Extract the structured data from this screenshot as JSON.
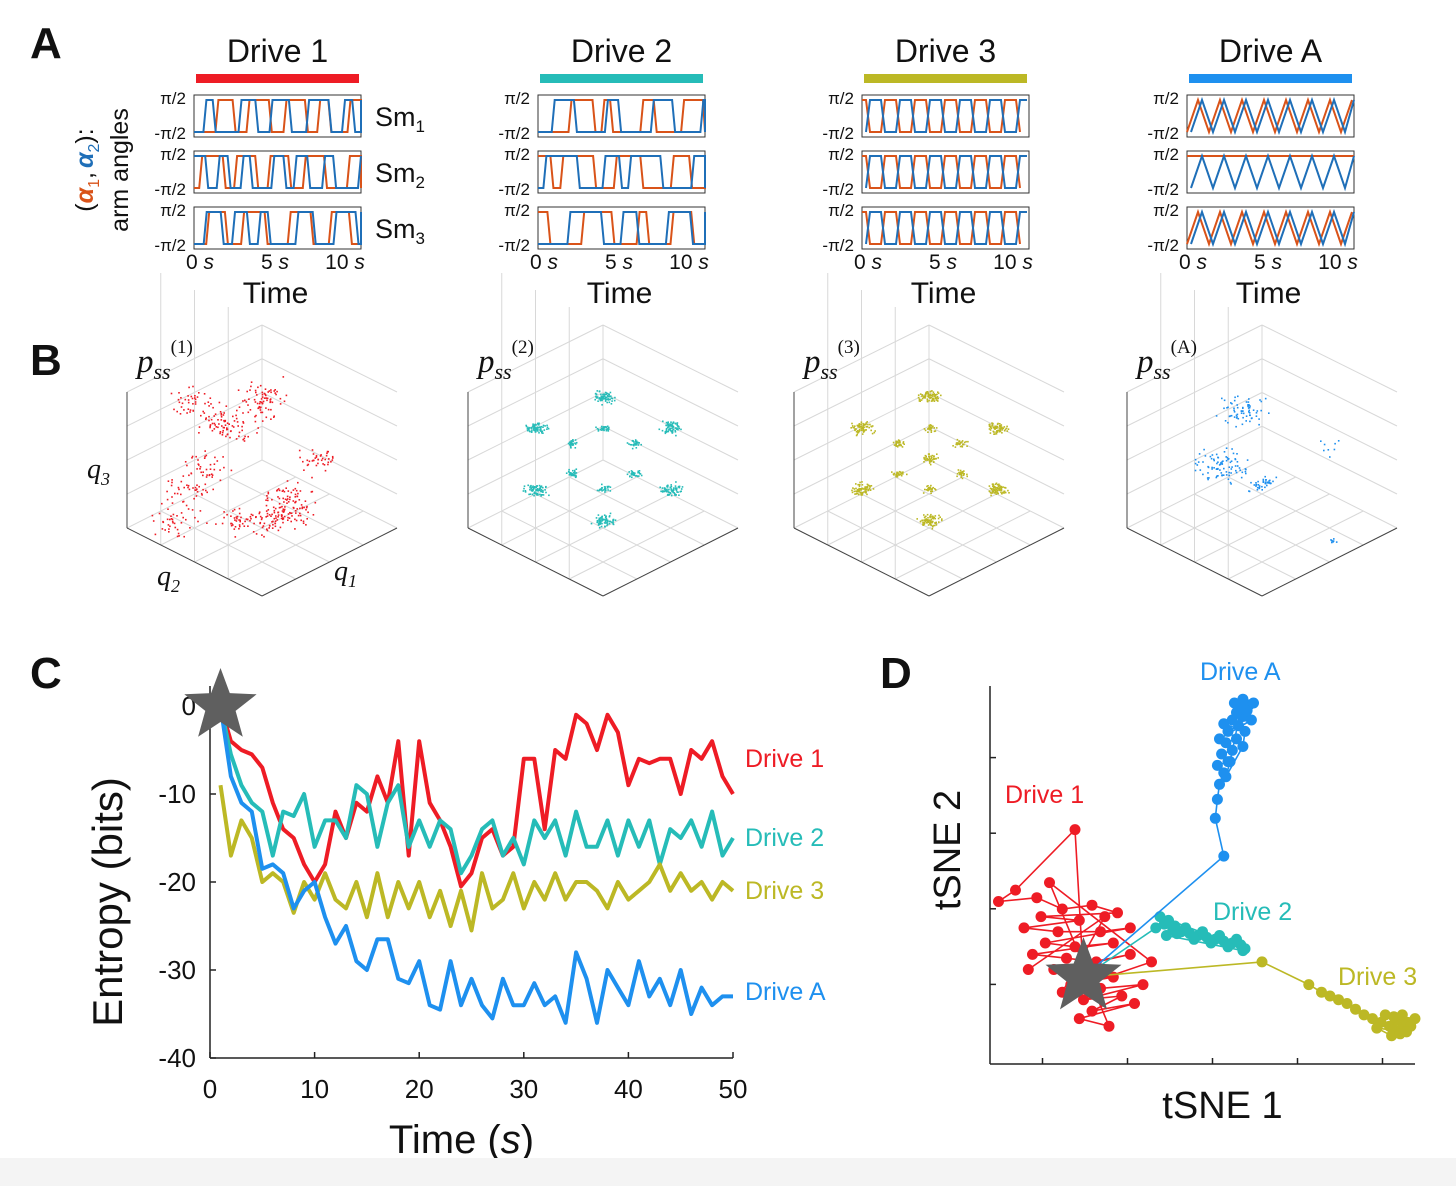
{
  "figure_title": "",
  "panel_labels": {
    "A": "A",
    "B": "B",
    "C": "C",
    "D": "D"
  },
  "colors": {
    "drive_1": "#ee1c25",
    "drive_2": "#26bcb8",
    "drive_3": "#bcb825",
    "drive_A": "#1e90ef",
    "alpha1": "#d95319",
    "alpha2": "#1f6fb8",
    "star": "#5f5f5f",
    "axis": "#222222",
    "grid": "#d8d8d8"
  },
  "panel_A": {
    "ylabel_line1": "arm angles",
    "ylabel_prefix": "(",
    "ylabel_alpha1": "α",
    "ylabel_sub1": "1",
    "ylabel_comma": ",",
    "ylabel_alpha2": "α",
    "ylabel_sub2": "2",
    "ylabel_suffix": "):",
    "row_labels": [
      {
        "main": "Sm",
        "sub": "1"
      },
      {
        "main": "Sm",
        "sub": "2"
      },
      {
        "main": "Sm",
        "sub": "3"
      }
    ],
    "ytick_top": "π/2",
    "ytick_bottom": "-π/2",
    "xticks": [
      {
        "num": "0",
        "unit": "s"
      },
      {
        "num": "5",
        "unit": "s"
      },
      {
        "num": "10",
        "unit": "s"
      }
    ],
    "xlabel": "Time",
    "drives": [
      {
        "title": "Drive 1",
        "color": "#ee1c25"
      },
      {
        "title": "Drive 2",
        "color": "#26bcb8"
      },
      {
        "title": "Drive 3",
        "color": "#bcb825"
      },
      {
        "title": "Drive A",
        "color": "#1e90ef"
      }
    ]
  },
  "panel_B": {
    "plots": [
      {
        "label_main": "p",
        "label_sub": "ss",
        "label_sup": "(1)",
        "color": "#ee1c25"
      },
      {
        "label_main": "p",
        "label_sub": "ss",
        "label_sup": "(2)",
        "color": "#26bcb8"
      },
      {
        "label_main": "p",
        "label_sub": "ss",
        "label_sup": "(3)",
        "color": "#bcb825"
      },
      {
        "label_main": "p",
        "label_sub": "ss",
        "label_sup": "(A)",
        "color": "#1e90ef"
      }
    ],
    "axis_labels": {
      "q1": "q",
      "q1_sub": "1",
      "q2": "q",
      "q2_sub": "2",
      "q3": "q",
      "q3_sub": "3"
    }
  },
  "chart_data": [
    {
      "type": "line",
      "title": "",
      "xlabel_main": "Time (",
      "xlabel_unit": "s",
      "xlabel_end": ")",
      "ylabel": "Entropy (bits)",
      "xlim": [
        0,
        50
      ],
      "ylim": [
        -40,
        0
      ],
      "xticks": [
        0,
        10,
        20,
        30,
        40,
        50
      ],
      "yticks": [
        0,
        -10,
        -20,
        -30,
        -40
      ],
      "start_marker": {
        "x": 1,
        "y": 0
      },
      "x": [
        1,
        2,
        3,
        4,
        5,
        6,
        7,
        8,
        9,
        10,
        11,
        12,
        13,
        14,
        15,
        16,
        17,
        18,
        19,
        20,
        21,
        22,
        23,
        24,
        25,
        26,
        27,
        28,
        29,
        30,
        31,
        32,
        33,
        34,
        35,
        36,
        37,
        38,
        39,
        40,
        41,
        42,
        43,
        44,
        45,
        46,
        47,
        48,
        49,
        50
      ],
      "series": [
        {
          "name": "Drive 1",
          "color": "#ee1c25",
          "values": [
            0,
            -4,
            -5,
            -5.5,
            -7,
            -11,
            -14,
            -15,
            -18,
            -20,
            -18,
            -12,
            -15,
            -11,
            -12,
            -8,
            -11,
            -4,
            -17,
            -4,
            -11,
            -13,
            -16,
            -20.5,
            -19,
            -15,
            -14,
            -17,
            -16,
            -6,
            -6,
            -14,
            -5,
            -6,
            -1,
            -2,
            -5,
            -1,
            -3,
            -9,
            -6,
            -6.5,
            -6,
            -6,
            -10,
            -5,
            -6,
            -4,
            -8,
            -10
          ]
        },
        {
          "name": "Drive 2",
          "color": "#26bcb8",
          "values": [
            0,
            -5.5,
            -9,
            -11,
            -12,
            -17,
            -12,
            -12.5,
            -10,
            -16,
            -13,
            -13,
            -15,
            -9,
            -10,
            -16,
            -11,
            -9,
            -16,
            -13,
            -16,
            -13,
            -14,
            -19,
            -17,
            -14,
            -13,
            -17,
            -15,
            -18,
            -13,
            -15,
            -13,
            -17,
            -12,
            -16,
            -16,
            -13,
            -17,
            -13,
            -16,
            -13,
            -18,
            -14,
            -15,
            -13,
            -16,
            -12,
            -17,
            -15
          ]
        },
        {
          "name": "Drive 3",
          "color": "#bcb825",
          "values": [
            -9,
            -17,
            -13,
            -15,
            -20,
            -19,
            -20,
            -23.5,
            -20,
            -22,
            -19,
            -22,
            -23,
            -20,
            -24,
            -19,
            -24,
            -20,
            -23,
            -20,
            -24,
            -21,
            -25,
            -21,
            -25.5,
            -19,
            -23,
            -22,
            -19,
            -23,
            -20,
            -22,
            -19,
            -22,
            -20,
            -20,
            -21,
            -23,
            -20,
            -22,
            -21,
            -20,
            -18,
            -21,
            -19,
            -21,
            -20,
            -22,
            -20,
            -21
          ]
        },
        {
          "name": "Drive A",
          "color": "#1e90ef",
          "values": [
            0,
            -8,
            -11,
            -12,
            -18.5,
            -18,
            -19,
            -23,
            -21,
            -20,
            -24,
            -27,
            -25,
            -29,
            -30,
            -26.5,
            -26.5,
            -31,
            -31.5,
            -29,
            -34,
            -34.5,
            -29,
            -34,
            -31,
            -34,
            -35.5,
            -31,
            -34,
            -34,
            -31.5,
            -34,
            -33,
            -36,
            -28,
            -31,
            -36,
            -30,
            -32,
            -34,
            -29,
            -33,
            -31,
            -34,
            -30,
            -35,
            -32,
            -34,
            -33,
            -33
          ]
        }
      ]
    },
    {
      "type": "scatter",
      "title": "",
      "xlabel": "tSNE 1",
      "ylabel": "tSNE 2",
      "xlim": [
        0,
        10
      ],
      "ylim": [
        0,
        10
      ],
      "start_marker": {
        "x": 2.2,
        "y": 2.3
      },
      "series": [
        {
          "name": "Drive 1",
          "color": "#ee1c25",
          "points": [
            [
              2.2,
              2.3
            ],
            [
              2.0,
              6.2
            ],
            [
              0.6,
              4.6
            ],
            [
              0.2,
              4.3
            ],
            [
              1.1,
              4.4
            ],
            [
              1.7,
              4.1
            ],
            [
              2.4,
              4.2
            ],
            [
              3.0,
              4.0
            ],
            [
              1.2,
              3.9
            ],
            [
              2.1,
              3.8
            ],
            [
              0.8,
              3.6
            ],
            [
              1.6,
              3.5
            ],
            [
              2.6,
              3.5
            ],
            [
              3.3,
              3.6
            ],
            [
              1.3,
              3.2
            ],
            [
              2.0,
              3.1
            ],
            [
              2.9,
              3.2
            ],
            [
              1.0,
              2.9
            ],
            [
              1.8,
              2.8
            ],
            [
              2.5,
              2.7
            ],
            [
              3.3,
              2.9
            ],
            [
              1.5,
              2.5
            ],
            [
              2.3,
              2.4
            ],
            [
              2.9,
              2.3
            ],
            [
              1.9,
              2.1
            ],
            [
              2.6,
              2.0
            ],
            [
              3.6,
              2.1
            ],
            [
              2.2,
              1.7
            ],
            [
              3.1,
              1.8
            ],
            [
              2.4,
              1.4
            ],
            [
              3.4,
              1.6
            ],
            [
              2.1,
              1.2
            ],
            [
              2.8,
              1.0
            ],
            [
              1.4,
              4.8
            ],
            [
              3.8,
              2.7
            ],
            [
              1.7,
              1.9
            ],
            [
              2.7,
              3.9
            ],
            [
              0.9,
              2.5
            ]
          ]
        },
        {
          "name": "Drive 2",
          "color": "#26bcb8",
          "points": [
            [
              2.2,
              2.3
            ],
            [
              3.9,
              3.6
            ],
            [
              4.1,
              3.7
            ],
            [
              4.3,
              3.55
            ],
            [
              4.5,
              3.5
            ],
            [
              4.7,
              3.45
            ],
            [
              4.9,
              3.4
            ],
            [
              5.1,
              3.35
            ],
            [
              5.3,
              3.3
            ],
            [
              5.5,
              3.25
            ],
            [
              5.7,
              3.2
            ],
            [
              5.9,
              3.15
            ],
            [
              6.0,
              3.05
            ],
            [
              4.0,
              3.9
            ],
            [
              4.2,
              3.8
            ],
            [
              4.4,
              3.45
            ],
            [
              4.6,
              3.6
            ],
            [
              4.8,
              3.3
            ],
            [
              5.0,
              3.5
            ],
            [
              5.2,
              3.2
            ],
            [
              5.4,
              3.4
            ],
            [
              5.6,
              3.1
            ],
            [
              5.8,
              3.3
            ],
            [
              5.95,
              3.0
            ],
            [
              4.15,
              3.4
            ],
            [
              4.35,
              3.65
            ]
          ]
        },
        {
          "name": "Drive 3",
          "color": "#bcb825",
          "points": [
            [
              2.2,
              2.3
            ],
            [
              6.4,
              2.7
            ],
            [
              7.5,
              2.1
            ],
            [
              7.8,
              1.9
            ],
            [
              8.0,
              1.8
            ],
            [
              8.2,
              1.7
            ],
            [
              8.4,
              1.6
            ],
            [
              8.6,
              1.45
            ],
            [
              8.8,
              1.3
            ],
            [
              9.0,
              1.2
            ],
            [
              9.2,
              1.1
            ],
            [
              9.4,
              1.0
            ],
            [
              9.5,
              0.9
            ],
            [
              9.6,
              1.15
            ],
            [
              9.7,
              0.95
            ],
            [
              9.8,
              1.1
            ],
            [
              9.9,
              1.0
            ],
            [
              10.0,
              1.2
            ],
            [
              9.3,
              1.3
            ],
            [
              9.5,
              1.25
            ],
            [
              9.7,
              1.3
            ],
            [
              9.8,
              0.85
            ],
            [
              9.1,
              0.95
            ],
            [
              9.45,
              0.75
            ],
            [
              9.65,
              0.8
            ]
          ]
        },
        {
          "name": "Drive A",
          "color": "#1e90ef",
          "points": [
            [
              2.2,
              2.3
            ],
            [
              5.5,
              5.5
            ],
            [
              5.3,
              6.5
            ],
            [
              5.35,
              7.0
            ],
            [
              5.4,
              7.4
            ],
            [
              5.5,
              7.7
            ],
            [
              5.35,
              7.9
            ],
            [
              5.6,
              8.0
            ],
            [
              5.45,
              8.2
            ],
            [
              5.7,
              8.3
            ],
            [
              5.55,
              8.5
            ],
            [
              5.8,
              8.6
            ],
            [
              5.6,
              8.8
            ],
            [
              5.85,
              8.95
            ],
            [
              5.7,
              9.1
            ],
            [
              5.95,
              9.2
            ],
            [
              5.8,
              9.3
            ],
            [
              6.05,
              9.35
            ],
            [
              5.9,
              9.45
            ],
            [
              6.1,
              9.5
            ],
            [
              5.75,
              9.55
            ],
            [
              6.2,
              9.55
            ],
            [
              5.95,
              9.65
            ],
            [
              5.65,
              8.0
            ],
            [
              5.55,
              7.6
            ],
            [
              5.95,
              8.4
            ],
            [
              6.0,
              8.8
            ],
            [
              5.5,
              9.0
            ],
            [
              6.15,
              9.1
            ],
            [
              5.4,
              8.6
            ]
          ]
        }
      ]
    }
  ]
}
